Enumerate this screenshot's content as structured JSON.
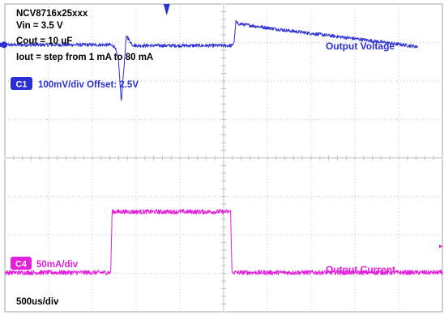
{
  "chart_data": {
    "type": "line",
    "title": "",
    "conditions": [
      "NCV8716x25xxx",
      "Vin = 3.5 V",
      "Cout = 10 uF",
      "Iout = step from 1 mA to 80 mA"
    ],
    "xlabel": "",
    "ylabel": "",
    "grid": true,
    "grid_divisions": {
      "x": 10,
      "y": 8
    },
    "timebase_label": "500us/div",
    "time_per_div_us": 500,
    "x_unit": "us",
    "xlim": [
      0,
      5000
    ],
    "series": [
      {
        "name": "Output Voltage",
        "channel_badge": "C1",
        "scale_label": "100mV/div Offset: 2.5V",
        "color": "#2a2fd6",
        "y_unit": "mV",
        "y_divisions_from_top": 1.06,
        "points": [
          [
            0,
            0
          ],
          [
            1200,
            0
          ],
          [
            1260,
            -5
          ],
          [
            1300,
            -45
          ],
          [
            1330,
            -150
          ],
          [
            1360,
            -62
          ],
          [
            1390,
            25
          ],
          [
            1420,
            12
          ],
          [
            1460,
            0
          ],
          [
            1500,
            -2
          ],
          [
            2600,
            -2
          ],
          [
            2620,
            8
          ],
          [
            2640,
            60
          ],
          [
            2660,
            55
          ],
          [
            3200,
            38
          ],
          [
            4000,
            16
          ],
          [
            4720,
            -5
          ]
        ]
      },
      {
        "name": "Output Current",
        "channel_badge": "C4",
        "scale_label": "50mA/div",
        "color": "#e31fdb",
        "y_unit": "mA",
        "y_divisions_from_top": 7.0,
        "points": [
          [
            0,
            1
          ],
          [
            1210,
            1
          ],
          [
            1225,
            80
          ],
          [
            2580,
            80
          ],
          [
            2595,
            1
          ],
          [
            5000,
            1
          ]
        ]
      }
    ]
  },
  "colors": {
    "grid": "#b9c3cc",
    "frame": "#9aa4ad",
    "text": "#000000"
  }
}
